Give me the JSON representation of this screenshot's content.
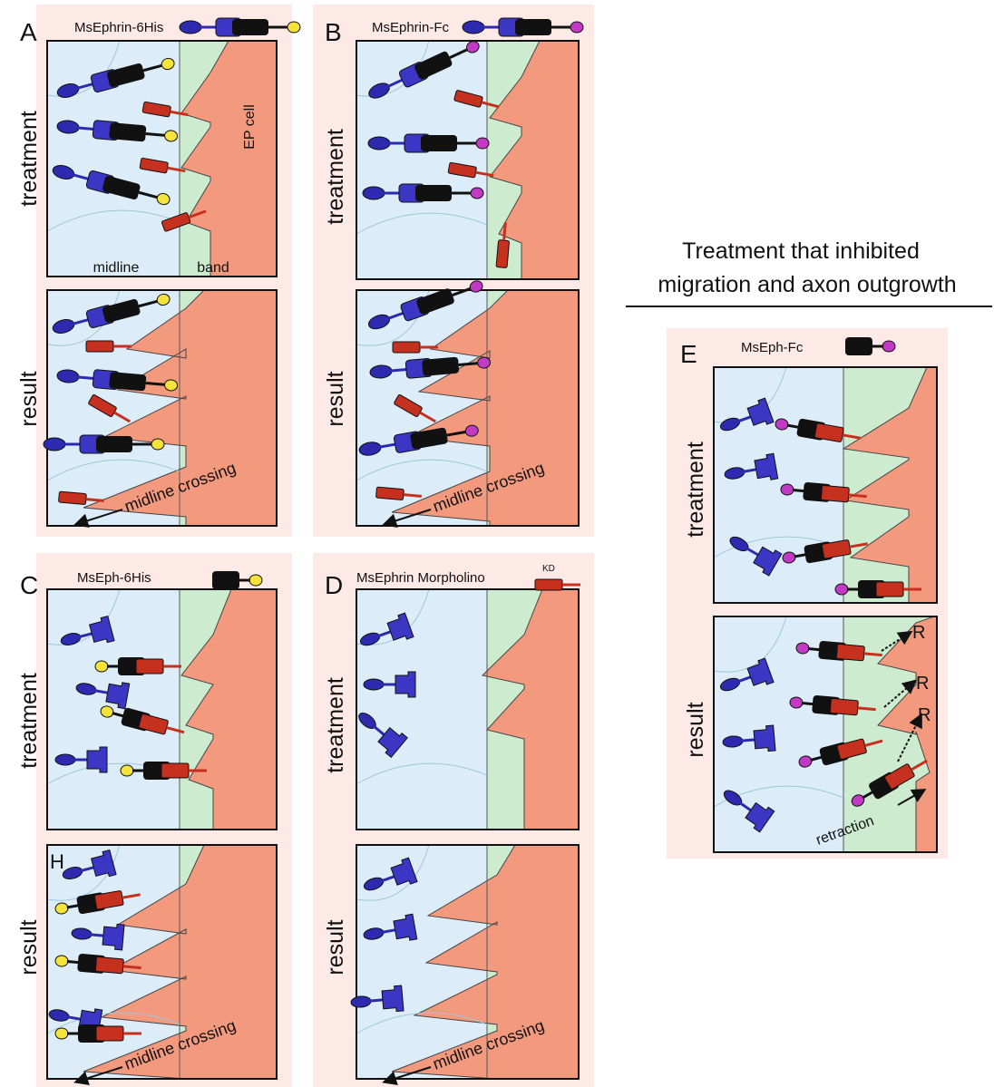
{
  "heading": {
    "line1": "Treatment that inhibited",
    "line2": "migration and axon outgrowth"
  },
  "panels": [
    {
      "letter": "A",
      "title": "MsEphrin-6His",
      "treatment_label": "treatment",
      "result_label": "result",
      "midline_label": "midline",
      "band_label": "band",
      "cell_label": "EP cell",
      "crossing_label": "midline crossing"
    },
    {
      "letter": "B",
      "title": "MsEphrin-Fc",
      "treatment_label": "treatment",
      "result_label": "result",
      "crossing_label": "midline crossing"
    },
    {
      "letter": "C",
      "title": "MsEph-6His",
      "treatment_label": "treatment",
      "result_label": "result",
      "result_marker": "H",
      "crossing_label": "midline crossing"
    },
    {
      "letter": "D",
      "title": "MsEphrin Morpholino",
      "title_tag": "KD",
      "treatment_label": "treatment",
      "result_label": "result",
      "crossing_label": "midline crossing"
    },
    {
      "letter": "E",
      "title": "MsEph-Fc",
      "treatment_label": "treatment",
      "result_label": "result",
      "retraction_markers": [
        "R",
        "R",
        "R"
      ],
      "retraction_label": "retraction"
    }
  ]
}
